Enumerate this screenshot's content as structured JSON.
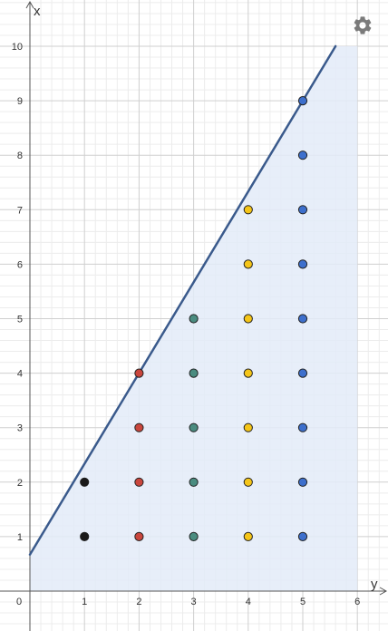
{
  "app": {
    "settings_icon": "gear-icon"
  },
  "chart_data": {
    "type": "scatter",
    "title": "",
    "xlabel": "y",
    "ylabel": "x",
    "xlim": [
      0,
      6.1
    ],
    "ylim": [
      -0.2,
      10.7
    ],
    "x_ticks": [
      0,
      1,
      2,
      3,
      4,
      5,
      6
    ],
    "y_ticks": [
      1,
      2,
      3,
      4,
      5,
      6,
      7,
      8,
      9,
      10
    ],
    "minor_grid_step": 0.2,
    "grid": true,
    "shaded_region": {
      "description_points": [
        [
          0,
          0
        ],
        [
          0,
          0.67
        ],
        [
          5.6,
          10
        ],
        [
          6,
          10
        ],
        [
          6,
          0
        ]
      ],
      "color": "#e3ebf8"
    },
    "line": {
      "points": [
        [
          0,
          0.67
        ],
        [
          5.6,
          10
        ]
      ],
      "color": "#3a5a8c"
    },
    "series": [
      {
        "color": "#1a1a1a",
        "points": [
          [
            1,
            1
          ],
          [
            1,
            2
          ]
        ]
      },
      {
        "color": "#c9463d",
        "points": [
          [
            2,
            1
          ],
          [
            2,
            2
          ],
          [
            2,
            3
          ],
          [
            2,
            4
          ]
        ]
      },
      {
        "color": "#4a8c80",
        "points": [
          [
            3,
            1
          ],
          [
            3,
            2
          ],
          [
            3,
            3
          ],
          [
            3,
            4
          ],
          [
            3,
            5
          ]
        ]
      },
      {
        "color": "#f5c518",
        "points": [
          [
            4,
            1
          ],
          [
            4,
            2
          ],
          [
            4,
            3
          ],
          [
            4,
            4
          ],
          [
            4,
            5
          ],
          [
            4,
            6
          ],
          [
            4,
            7
          ]
        ]
      },
      {
        "color": "#3d6fcc",
        "points": [
          [
            5,
            1
          ],
          [
            5,
            2
          ],
          [
            5,
            3
          ],
          [
            5,
            4
          ],
          [
            5,
            5
          ],
          [
            5,
            6
          ],
          [
            5,
            7
          ],
          [
            5,
            8
          ],
          [
            5,
            9
          ]
        ]
      }
    ]
  }
}
